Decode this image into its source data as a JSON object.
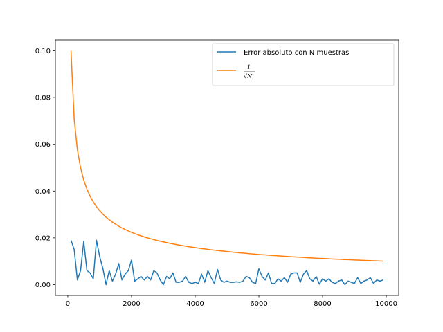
{
  "chart_data": {
    "type": "line",
    "title": "",
    "xlabel": "",
    "ylabel": "",
    "xlim": [
      -390,
      10390
    ],
    "ylim": [
      -0.0046,
      0.1046
    ],
    "grid": false,
    "legend_placement": "top-right",
    "x_ticks": [
      0,
      2000,
      4000,
      6000,
      8000,
      10000
    ],
    "x_tick_labels": [
      "0",
      "2000",
      "4000",
      "6000",
      "8000",
      "10000"
    ],
    "y_ticks": [
      0.0,
      0.02,
      0.04,
      0.06,
      0.08,
      0.1
    ],
    "y_tick_labels": [
      "0.00",
      "0.02",
      "0.04",
      "0.06",
      "0.08",
      "0.10"
    ],
    "series": [
      {
        "name": "Error absoluto con N muestras",
        "color": "#1f77b4",
        "x": [
          100,
          200,
          300,
          400,
          500,
          600,
          700,
          800,
          900,
          1000,
          1100,
          1200,
          1300,
          1400,
          1500,
          1600,
          1700,
          1800,
          1900,
          2000,
          2100,
          2200,
          2300,
          2400,
          2500,
          2600,
          2700,
          2800,
          2900,
          3000,
          3100,
          3200,
          3300,
          3400,
          3500,
          3600,
          3700,
          3800,
          3900,
          4000,
          4100,
          4200,
          4300,
          4400,
          4500,
          4600,
          4700,
          4800,
          4900,
          5000,
          5100,
          5200,
          5300,
          5400,
          5500,
          5600,
          5700,
          5800,
          5900,
          6000,
          6100,
          6200,
          6300,
          6400,
          6500,
          6600,
          6700,
          6800,
          6900,
          7000,
          7100,
          7200,
          7300,
          7400,
          7500,
          7600,
          7700,
          7800,
          7900,
          8000,
          8100,
          8200,
          8300,
          8400,
          8500,
          8600,
          8700,
          8800,
          8900,
          9000,
          9100,
          9200,
          9300,
          9400,
          9500,
          9600,
          9700,
          9800,
          9900
        ],
        "y": [
          0.019,
          0.015,
          0.002,
          0.006,
          0.0185,
          0.006,
          0.005,
          0.0025,
          0.019,
          0.012,
          0.007,
          0.0,
          0.006,
          0.0015,
          0.0045,
          0.009,
          0.002,
          0.0045,
          0.006,
          0.0105,
          0.0015,
          0.0025,
          0.0035,
          0.002,
          0.0035,
          0.002,
          0.006,
          0.005,
          0.002,
          0.0,
          0.0035,
          0.0025,
          0.005,
          0.001,
          0.001,
          0.0015,
          0.0035,
          0.001,
          0.0005,
          0.001,
          0.0005,
          0.0045,
          0.001,
          0.006,
          0.003,
          0.0005,
          0.0065,
          0.002,
          0.001,
          0.0015,
          0.001,
          0.001,
          0.0012,
          0.001,
          0.0015,
          0.0035,
          0.003,
          0.001,
          0.0005,
          0.0068,
          0.0035,
          0.002,
          0.005,
          0.0005,
          0.0005,
          0.0025,
          0.0015,
          0.003,
          0.001,
          0.0045,
          0.005,
          0.005,
          0.001,
          0.0045,
          0.006,
          0.0025,
          0.0015,
          0.0035,
          0.0002,
          0.0025,
          0.0015,
          0.0025,
          0.001,
          0.0005,
          0.0015,
          0.002,
          0.0,
          0.0015,
          0.001,
          0.0005,
          0.003,
          0.0005,
          0.0015,
          0.002,
          0.003,
          0.0005,
          0.002,
          0.0015,
          0.002
        ]
      },
      {
        "name": "1/sqrt(N)",
        "legend_numerator": "1",
        "legend_denominator": "√N",
        "color": "#ff7f0e",
        "formula": "1/sqrt(N)",
        "x_start": 100,
        "x_end": 9900,
        "x_step": 100
      }
    ]
  }
}
